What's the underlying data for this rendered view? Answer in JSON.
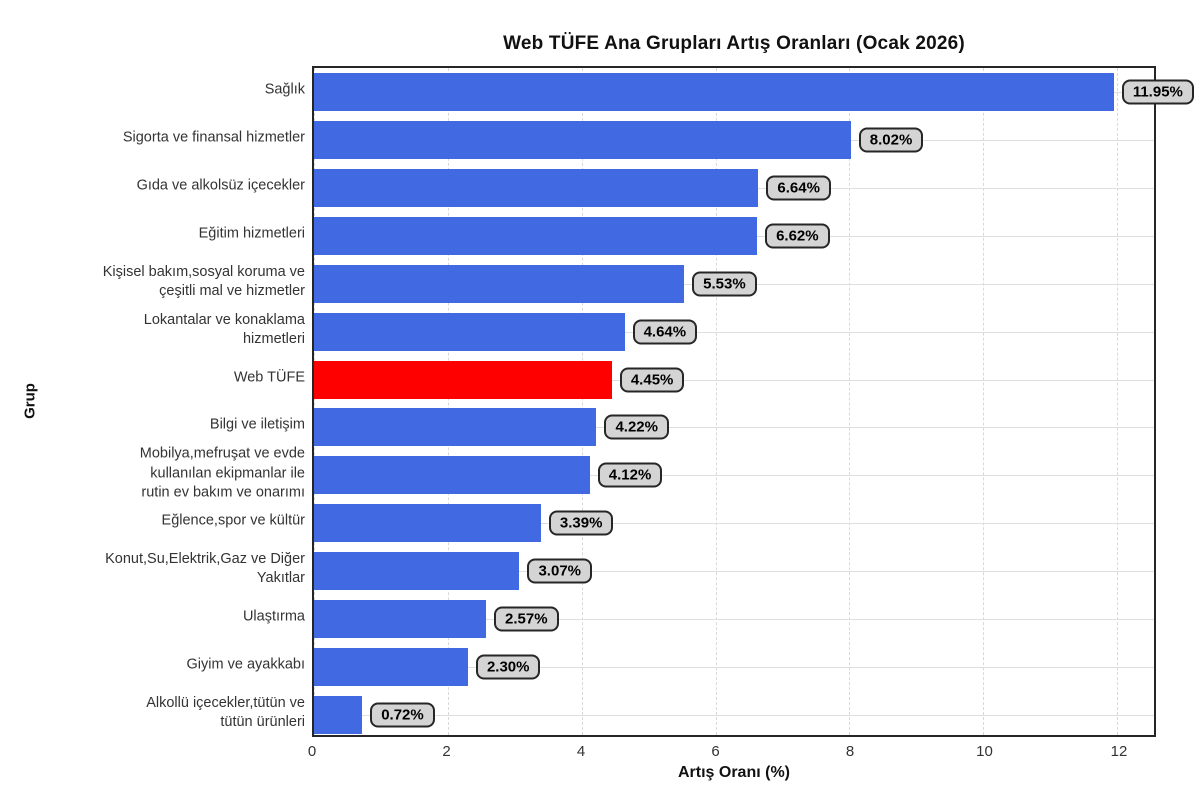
{
  "figure": {
    "background": "#ffffff"
  },
  "chart_data": {
    "type": "bar",
    "orientation": "horizontal",
    "title": "Web TÜFE Ana Grupları Artış Oranları (Ocak 2026)",
    "xlabel": "Artış Oranı (%)",
    "ylabel": "Grup",
    "xlim": [
      0,
      12.55
    ],
    "xticks": [
      0,
      2,
      4,
      6,
      8,
      10,
      12
    ],
    "grid": {
      "vertical": "dashed",
      "horizontal": "solid"
    },
    "legend": "none",
    "bar_color": "#4169E1",
    "highlight_color": "#FF0000",
    "highlight_category": "Web TÜFE",
    "highlight_index": 6,
    "label_box": {
      "background": "#d4d4d4",
      "border": "#262626"
    },
    "categories": [
      "Sağlık",
      "Sigorta ve finansal hizmetler",
      "Gıda ve alkolsüz içecekler",
      "Eğitim hizmetleri",
      "Kişisel bakım,sosyal koruma ve\nçeşitli mal ve hizmetler",
      "Lokantalar ve konaklama\nhizmetleri",
      "Web TÜFE",
      "Bilgi ve iletişim",
      "Mobilya,mefruşat ve evde\nkullanılan ekipmanlar ile\nrutin ev bakım ve onarımı",
      "Eğlence,spor ve kültür",
      "Konut,Su,Elektrik,Gaz ve Diğer\nYakıtlar",
      "Ulaştırma",
      "Giyim ve ayakkabı",
      "Alkollü içecekler,tütün ve\ntütün ürünleri"
    ],
    "values": [
      11.95,
      8.02,
      6.64,
      6.62,
      5.53,
      4.64,
      4.45,
      4.22,
      4.12,
      3.39,
      3.07,
      2.57,
      2.3,
      0.72
    ],
    "value_labels": [
      "11.95%",
      "8.02%",
      "6.64%",
      "6.62%",
      "5.53%",
      "4.64%",
      "4.45%",
      "4.22%",
      "4.12%",
      "3.39%",
      "3.07%",
      "2.57%",
      "2.30%",
      "0.72%"
    ]
  }
}
